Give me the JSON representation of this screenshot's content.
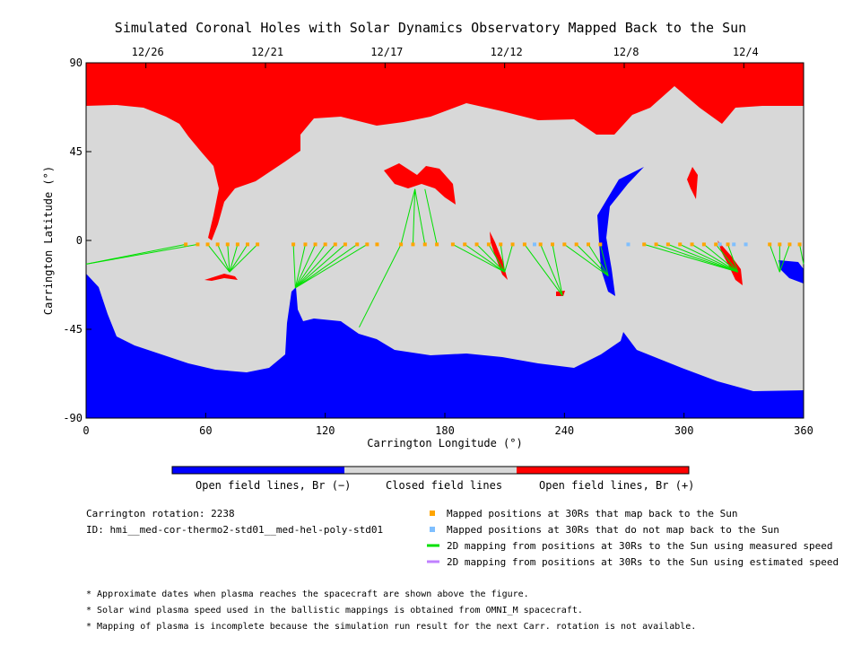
{
  "title": "Simulated Coronal Holes with Solar Dynamics Observatory Mapped Back to the Sun",
  "colors": {
    "negative": "#0000ff",
    "closed": "#d8d8d8",
    "positive": "#ff0000",
    "mapped": "#ffa500",
    "unmapped": "#7fbfff",
    "measured": "#00e000",
    "estimated": "#c080ff"
  },
  "chart_data": {
    "type": "heatmap",
    "xlabel": "Carrington Longitude (°)",
    "ylabel": "Carrington Latitude (°)",
    "xlim": [
      0,
      360
    ],
    "ylim": [
      -90,
      90
    ],
    "x_ticks": [
      0,
      60,
      120,
      180,
      240,
      300,
      360
    ],
    "y_ticks": [
      -90,
      -45,
      0,
      45,
      90
    ],
    "top_axis_dates": [
      {
        "label": "12/26",
        "lon": 30
      },
      {
        "label": "12/21",
        "lon": 90
      },
      {
        "label": "12/17",
        "lon": 150
      },
      {
        "label": "12/12",
        "lon": 210
      },
      {
        "label": "12/8",
        "lon": 270
      },
      {
        "label": "12/4",
        "lon": 330
      }
    ],
    "colorbar_labels": [
      "Open field lines, Br (−)",
      "Closed field lines",
      "Open field lines, Br (+)"
    ],
    "mapped_points": [
      {
        "lon": 50,
        "lat": -2
      },
      {
        "lon": 56,
        "lat": -2
      },
      {
        "lon": 61,
        "lat": -2
      },
      {
        "lon": 66,
        "lat": -2
      },
      {
        "lon": 71,
        "lat": -2
      },
      {
        "lon": 76,
        "lat": -2
      },
      {
        "lon": 81,
        "lat": -2
      },
      {
        "lon": 86,
        "lat": -2
      },
      {
        "lon": 104,
        "lat": -2
      },
      {
        "lon": 110,
        "lat": -2
      },
      {
        "lon": 115,
        "lat": -2
      },
      {
        "lon": 120,
        "lat": -2
      },
      {
        "lon": 125,
        "lat": -2
      },
      {
        "lon": 130,
        "lat": -2
      },
      {
        "lon": 136,
        "lat": -2
      },
      {
        "lon": 141,
        "lat": -2
      },
      {
        "lon": 146,
        "lat": -2
      },
      {
        "lon": 158,
        "lat": -2
      },
      {
        "lon": 164,
        "lat": -2
      },
      {
        "lon": 170,
        "lat": -2
      },
      {
        "lon": 176,
        "lat": -2
      },
      {
        "lon": 184,
        "lat": -2
      },
      {
        "lon": 190,
        "lat": -2
      },
      {
        "lon": 196,
        "lat": -2
      },
      {
        "lon": 202,
        "lat": -2
      },
      {
        "lon": 208,
        "lat": -2
      },
      {
        "lon": 214,
        "lat": -2
      },
      {
        "lon": 220,
        "lat": -2
      },
      {
        "lon": 228,
        "lat": -2
      },
      {
        "lon": 234,
        "lat": -2
      },
      {
        "lon": 240,
        "lat": -2
      },
      {
        "lon": 246,
        "lat": -2
      },
      {
        "lon": 252,
        "lat": -2
      },
      {
        "lon": 258,
        "lat": -2
      },
      {
        "lon": 280,
        "lat": -2
      },
      {
        "lon": 286,
        "lat": -2
      },
      {
        "lon": 292,
        "lat": -2
      },
      {
        "lon": 298,
        "lat": -2
      },
      {
        "lon": 304,
        "lat": -2
      },
      {
        "lon": 310,
        "lat": -2
      },
      {
        "lon": 316,
        "lat": -2
      },
      {
        "lon": 322,
        "lat": -2
      },
      {
        "lon": 343,
        "lat": -2
      },
      {
        "lon": 348,
        "lat": -2
      },
      {
        "lon": 353,
        "lat": -2
      },
      {
        "lon": 358,
        "lat": -2
      }
    ],
    "unmapped_points": [
      {
        "lon": 225,
        "lat": -2
      },
      {
        "lon": 272,
        "lat": -2
      },
      {
        "lon": 318,
        "lat": -2
      },
      {
        "lon": 325,
        "lat": -2
      },
      {
        "lon": 331,
        "lat": -2
      }
    ],
    "mapping_lines": [
      {
        "from": [
          0,
          -12
        ],
        "to": [
          50,
          -2
        ]
      },
      {
        "from": [
          0,
          -12
        ],
        "to": [
          56,
          -2
        ]
      },
      {
        "from": [
          72,
          -16
        ],
        "to": [
          61,
          -2
        ]
      },
      {
        "from": [
          72,
          -16
        ],
        "to": [
          66,
          -2
        ]
      },
      {
        "from": [
          72,
          -16
        ],
        "to": [
          71,
          -2
        ]
      },
      {
        "from": [
          72,
          -16
        ],
        "to": [
          76,
          -2
        ]
      },
      {
        "from": [
          72,
          -16
        ],
        "to": [
          81,
          -2
        ]
      },
      {
        "from": [
          72,
          -16
        ],
        "to": [
          86,
          -2
        ]
      },
      {
        "from": [
          105,
          -24
        ],
        "to": [
          104,
          -2
        ]
      },
      {
        "from": [
          105,
          -24
        ],
        "to": [
          110,
          -2
        ]
      },
      {
        "from": [
          105,
          -24
        ],
        "to": [
          115,
          -2
        ]
      },
      {
        "from": [
          105,
          -24
        ],
        "to": [
          120,
          -2
        ]
      },
      {
        "from": [
          105,
          -24
        ],
        "to": [
          125,
          -2
        ]
      },
      {
        "from": [
          105,
          -24
        ],
        "to": [
          130,
          -2
        ]
      },
      {
        "from": [
          105,
          -24
        ],
        "to": [
          136,
          -2
        ]
      },
      {
        "from": [
          105,
          -24
        ],
        "to": [
          141,
          -2
        ]
      },
      {
        "from": [
          137,
          -44
        ],
        "to": [
          158,
          -2
        ]
      },
      {
        "from": [
          165,
          26
        ],
        "to": [
          158,
          -2
        ]
      },
      {
        "from": [
          165,
          26
        ],
        "to": [
          164,
          -2
        ]
      },
      {
        "from": [
          165,
          26
        ],
        "to": [
          170,
          -2
        ]
      },
      {
        "from": [
          170,
          26
        ],
        "to": [
          176,
          -2
        ]
      },
      {
        "from": [
          210,
          -16
        ],
        "to": [
          184,
          -2
        ]
      },
      {
        "from": [
          210,
          -16
        ],
        "to": [
          190,
          -2
        ]
      },
      {
        "from": [
          210,
          -16
        ],
        "to": [
          196,
          -2
        ]
      },
      {
        "from": [
          210,
          -16
        ],
        "to": [
          202,
          -2
        ]
      },
      {
        "from": [
          210,
          -16
        ],
        "to": [
          208,
          -2
        ]
      },
      {
        "from": [
          210,
          -16
        ],
        "to": [
          214,
          -2
        ]
      },
      {
        "from": [
          239,
          -28
        ],
        "to": [
          220,
          -2
        ]
      },
      {
        "from": [
          239,
          -28
        ],
        "to": [
          228,
          -2
        ]
      },
      {
        "from": [
          239,
          -28
        ],
        "to": [
          234,
          -2
        ]
      },
      {
        "from": [
          262,
          -18
        ],
        "to": [
          240,
          -2
        ]
      },
      {
        "from": [
          262,
          -18
        ],
        "to": [
          246,
          -2
        ]
      },
      {
        "from": [
          262,
          -18
        ],
        "to": [
          252,
          -2
        ]
      },
      {
        "from": [
          262,
          -18
        ],
        "to": [
          258,
          -2
        ]
      },
      {
        "from": [
          327,
          -16
        ],
        "to": [
          280,
          -2
        ]
      },
      {
        "from": [
          327,
          -16
        ],
        "to": [
          286,
          -2
        ]
      },
      {
        "from": [
          327,
          -16
        ],
        "to": [
          292,
          -2
        ]
      },
      {
        "from": [
          327,
          -16
        ],
        "to": [
          298,
          -2
        ]
      },
      {
        "from": [
          327,
          -16
        ],
        "to": [
          304,
          -2
        ]
      },
      {
        "from": [
          327,
          -16
        ],
        "to": [
          310,
          -2
        ]
      },
      {
        "from": [
          327,
          -16
        ],
        "to": [
          316,
          -2
        ]
      },
      {
        "from": [
          327,
          -16
        ],
        "to": [
          322,
          -2
        ]
      },
      {
        "from": [
          348,
          -16
        ],
        "to": [
          343,
          -2
        ]
      },
      {
        "from": [
          348,
          -16
        ],
        "to": [
          348,
          -2
        ]
      },
      {
        "from": [
          348,
          -16
        ],
        "to": [
          353,
          -2
        ]
      },
      {
        "from": [
          360,
          -12
        ],
        "to": [
          358,
          -2
        ]
      }
    ]
  },
  "info": {
    "rotation": "Carrington rotation: 2238",
    "id": "ID: hmi__med-cor-thermo2-std01__med-hel-poly-std01"
  },
  "legend": [
    "Mapped positions at 30Rs that map back to the Sun",
    "Mapped positions at 30Rs that do not map back to the Sun",
    "2D mapping from positions at 30Rs to the Sun using measured speed",
    "2D mapping from positions at 30Rs to the Sun using estimated speed"
  ],
  "notes": [
    "* Approximate dates when plasma reaches the spacecraft are shown above the figure.",
    "* Solar wind plasma speed used in the ballistic mappings is obtained from OMNI_M spacecraft.",
    "* Mapping of plasma is incomplete because the simulation run result for the next Carr. rotation is not available."
  ]
}
